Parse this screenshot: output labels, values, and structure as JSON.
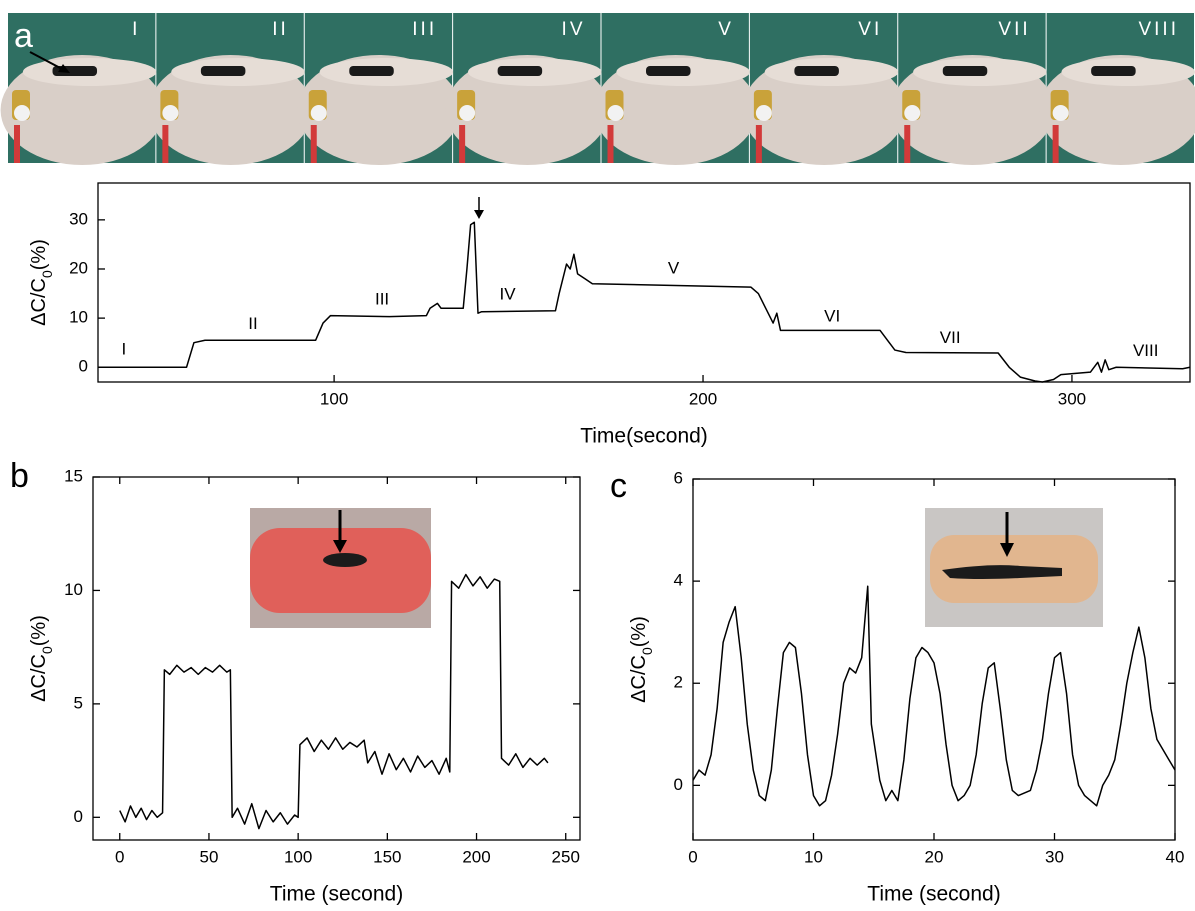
{
  "chart_data": [
    {
      "type": "line",
      "panel_label": "a",
      "photo_labels": [
        "I",
        "II",
        "III",
        "IV",
        "V",
        "VI",
        "VII",
        "VIII"
      ],
      "x_label": "Time(second)",
      "y_label": [
        "ΔC/C",
        "0",
        "(%)"
      ],
      "xlim": [
        36,
        332
      ],
      "ylim": [
        -3,
        37.5
      ],
      "xticks": [
        100,
        200,
        300
      ],
      "yticks": [
        0,
        10,
        20,
        30
      ],
      "color": "#000000",
      "x": [
        36,
        60,
        62,
        65,
        95,
        97,
        99,
        115,
        125,
        126,
        128,
        129,
        135,
        136,
        137,
        138,
        139,
        140,
        160,
        161,
        163,
        164,
        165,
        166,
        168,
        170,
        213,
        215,
        217,
        219,
        220,
        221,
        248,
        252,
        255,
        280,
        283,
        286,
        290,
        292,
        295,
        297,
        305,
        307,
        308,
        309,
        310,
        312,
        330,
        332
      ],
      "values": [
        0,
        0,
        5,
        5.5,
        5.5,
        9,
        10.5,
        10.3,
        10.5,
        12,
        13,
        12,
        12,
        20,
        29,
        29.5,
        11,
        11.3,
        11.5,
        15,
        21,
        20,
        23,
        19,
        18,
        17,
        16.3,
        15,
        12,
        9,
        11,
        7.5,
        7.5,
        3.5,
        3,
        2.9,
        0,
        -2,
        -2.8,
        -3,
        -2.5,
        -1.5,
        -1,
        1,
        -1,
        1.5,
        -0.5,
        0,
        -0.3,
        0
      ],
      "annotations": [
        {
          "text": "I",
          "x": 43,
          "y": 3.5
        },
        {
          "text": "II",
          "x": 78,
          "y": 8.7
        },
        {
          "text": "III",
          "x": 113,
          "y": 13.7
        },
        {
          "text": "IV",
          "x": 147,
          "y": 14.7
        },
        {
          "text": "V",
          "x": 192,
          "y": 20
        },
        {
          "text": "VI",
          "x": 235,
          "y": 10.2
        },
        {
          "text": "VII",
          "x": 267,
          "y": 5.8
        },
        {
          "text": "VIII",
          "x": 320,
          "y": 3.2
        }
      ]
    },
    {
      "type": "line",
      "panel_label": "b",
      "x_label": "Time (second)",
      "y_label": [
        "ΔC/C",
        "0",
        "(%)"
      ],
      "xlim": [
        -15,
        258
      ],
      "ylim": [
        -1,
        15
      ],
      "xticks": [
        0,
        50,
        100,
        150,
        200,
        250
      ],
      "yticks": [
        0,
        5,
        10,
        15
      ],
      "color": "#000000",
      "x": [
        0,
        3,
        6,
        9,
        12,
        15,
        18,
        21,
        24,
        25,
        28,
        32,
        36,
        40,
        44,
        48,
        52,
        56,
        60,
        62,
        63,
        66,
        70,
        74,
        78,
        82,
        86,
        90,
        94,
        98,
        100,
        101,
        105,
        109,
        113,
        117,
        121,
        125,
        129,
        133,
        137,
        139,
        143,
        147,
        151,
        155,
        159,
        163,
        167,
        171,
        175,
        179,
        183,
        185,
        186,
        190,
        194,
        198,
        202,
        206,
        210,
        213,
        214,
        218,
        222,
        226,
        230,
        234,
        238,
        240
      ],
      "values": [
        0.3,
        -0.2,
        0.5,
        0,
        0.4,
        -0.1,
        0.3,
        0,
        0.2,
        6.5,
        6.3,
        6.7,
        6.4,
        6.6,
        6.3,
        6.6,
        6.4,
        6.7,
        6.4,
        6.5,
        0,
        0.4,
        -0.3,
        0.6,
        -0.5,
        0.3,
        -0.2,
        0.2,
        -0.3,
        0.1,
        0,
        3.2,
        3.5,
        2.9,
        3.4,
        3,
        3.5,
        3,
        3.3,
        3.1,
        3.4,
        2.4,
        2.9,
        1.9,
        2.8,
        2.1,
        2.6,
        2,
        2.7,
        2.2,
        2.5,
        1.9,
        2.6,
        2,
        10.4,
        10.1,
        10.7,
        10.2,
        10.6,
        10.1,
        10.5,
        10.4,
        2.6,
        2.3,
        2.8,
        2.2,
        2.6,
        2.3,
        2.6,
        2.4
      ]
    },
    {
      "type": "line",
      "panel_label": "c",
      "x_label": "Time (second)",
      "y_label": [
        "ΔC/C",
        "0",
        "(%)"
      ],
      "xlim": [
        0,
        40
      ],
      "ylim": [
        -1.07,
        6
      ],
      "xticks": [
        0,
        10,
        20,
        30,
        40
      ],
      "yticks": [
        0,
        2,
        4,
        6
      ],
      "color": "#000000",
      "x": [
        0,
        0.5,
        1,
        1.5,
        2,
        2.5,
        3,
        3.5,
        4,
        4.5,
        5,
        5.5,
        6,
        6.5,
        7,
        7.5,
        8,
        8.5,
        9,
        9.5,
        10,
        10.5,
        11,
        11.5,
        12,
        12.5,
        13,
        13.5,
        14,
        14.5,
        14.8,
        15.5,
        16,
        16.5,
        17,
        17.5,
        18,
        18.5,
        19,
        19.5,
        20,
        20.5,
        21,
        21.5,
        22,
        22.5,
        23,
        23.5,
        24,
        24.5,
        25,
        25.5,
        26,
        26.5,
        27,
        28,
        28.5,
        29,
        29.5,
        30,
        30.5,
        31,
        31.5,
        32,
        32.5,
        33,
        33.5,
        34,
        34.5,
        35,
        35.5,
        36,
        36.5,
        37,
        37.5,
        38,
        38.5,
        39,
        39.5,
        40
      ],
      "values": [
        0.1,
        0.3,
        0.2,
        0.6,
        1.5,
        2.8,
        3.2,
        3.5,
        2.5,
        1.2,
        0.3,
        -0.2,
        -0.3,
        0.3,
        1.5,
        2.6,
        2.8,
        2.7,
        1.8,
        0.6,
        -0.2,
        -0.4,
        -0.3,
        0.2,
        1,
        2,
        2.3,
        2.2,
        2.5,
        3.9,
        1.2,
        0.1,
        -0.3,
        -0.1,
        -0.3,
        0.5,
        1.7,
        2.5,
        2.7,
        2.6,
        2.4,
        1.8,
        0.8,
        0,
        -0.3,
        -0.2,
        0,
        0.6,
        1.6,
        2.3,
        2.4,
        1.5,
        0.5,
        -0.1,
        -0.2,
        -0.1,
        0.3,
        0.9,
        1.8,
        2.5,
        2.6,
        1.8,
        0.6,
        0,
        -0.2,
        -0.3,
        -0.4,
        0,
        0.2,
        0.5,
        1.2,
        2,
        2.6,
        3.1,
        2.5,
        1.5,
        0.9,
        0.7,
        0.5,
        0.3
      ]
    }
  ]
}
